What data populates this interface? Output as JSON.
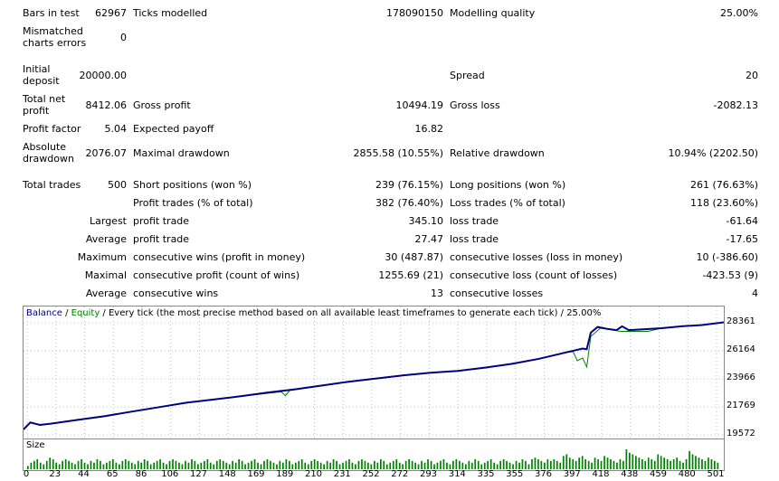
{
  "stats": {
    "bars_in_test": {
      "label": "Bars in test",
      "value": "62967"
    },
    "ticks_modelled": {
      "label": "Ticks modelled",
      "value": "178090150"
    },
    "modelling_quality": {
      "label": "Modelling quality",
      "value": "25.00%"
    },
    "mismatched": {
      "label_l1": "Mismatched",
      "label_l2": "charts errors",
      "value": "0"
    },
    "initial_deposit": {
      "label_l1": "Initial",
      "label_l2": "deposit",
      "value": "20000.00"
    },
    "spread": {
      "label": "Spread",
      "value": "20"
    },
    "total_net_profit": {
      "label_l1": "Total net",
      "label_l2": "profit",
      "value": "8412.06"
    },
    "gross_profit": {
      "label": "Gross profit",
      "value": "10494.19"
    },
    "gross_loss": {
      "label": "Gross loss",
      "value": "-2082.13"
    },
    "profit_factor": {
      "label": "Profit factor",
      "value": "5.04"
    },
    "expected_payoff": {
      "label": "Expected payoff",
      "value": "16.82"
    },
    "absolute_drawdown": {
      "label_l1": "Absolute",
      "label_l2": "drawdown",
      "value": "2076.07"
    },
    "maximal_drawdown": {
      "label": "Maximal drawdown",
      "value": "2855.58 (10.55%)"
    },
    "relative_drawdown": {
      "label": "Relative drawdown",
      "value": "10.94% (2202.50)"
    },
    "total_trades": {
      "label": "Total trades",
      "value": "500"
    },
    "short_positions": {
      "label": "Short positions (won %)",
      "value": "239 (76.15%)"
    },
    "long_positions": {
      "label": "Long positions (won %)",
      "value": "261 (76.63%)"
    },
    "profit_trades": {
      "label": "Profit trades (% of total)",
      "value": "382 (76.40%)"
    },
    "loss_trades": {
      "label": "Loss trades (% of total)",
      "value": "118 (23.60%)"
    },
    "largest": {
      "prefix": "Largest",
      "profit_label": "profit trade",
      "profit_value": "345.10",
      "loss_label": "loss trade",
      "loss_value": "-61.64"
    },
    "average": {
      "prefix": "Average",
      "profit_label": "profit trade",
      "profit_value": "27.47",
      "loss_label": "loss trade",
      "loss_value": "-17.65"
    },
    "maximum": {
      "prefix": "Maximum",
      "profit_label": "consecutive wins (profit in money)",
      "profit_value": "30 (487.87)",
      "loss_label": "consecutive losses (loss in money)",
      "loss_value": "10 (-386.60)"
    },
    "maximal": {
      "prefix": "Maximal",
      "profit_label": "consecutive profit (count of wins)",
      "profit_value": "1255.69 (21)",
      "loss_label": "consecutive loss (count of losses)",
      "loss_value": "-423.53 (9)"
    },
    "average2": {
      "prefix": "Average",
      "profit_label": "consecutive wins",
      "profit_value": "13",
      "loss_label": "consecutive losses",
      "loss_value": "4"
    }
  },
  "chart_legend": {
    "balance": "Balance",
    "sep": " / ",
    "equity": "Equity",
    "rest": " / Every tick (the most precise method based on all available least timeframes to generate each tick) / 25.00%"
  },
  "colors": {
    "balance": "#000080",
    "equity": "#008000",
    "volume": "#008000",
    "grid": "#c0c0c0"
  },
  "volume_label": "Size",
  "chart_data": {
    "type": "line",
    "x_ticks": [
      "0",
      "23",
      "44",
      "65",
      "86",
      "106",
      "127",
      "148",
      "169",
      "189",
      "210",
      "231",
      "252",
      "272",
      "293",
      "314",
      "335",
      "355",
      "376",
      "397",
      "418",
      "438",
      "459",
      "480",
      "501"
    ],
    "y_ticks": [
      "28361",
      "26164",
      "23966",
      "21769",
      "19572"
    ],
    "ylim": [
      19572,
      28800
    ],
    "xlim": [
      0,
      516
    ],
    "series": [
      {
        "name": "Balance",
        "points": [
          [
            0,
            20000
          ],
          [
            5,
            20550
          ],
          [
            12,
            20350
          ],
          [
            20,
            20450
          ],
          [
            40,
            20750
          ],
          [
            60,
            21050
          ],
          [
            80,
            21400
          ],
          [
            100,
            21750
          ],
          [
            120,
            22100
          ],
          [
            140,
            22350
          ],
          [
            160,
            22600
          ],
          [
            180,
            22900
          ],
          [
            200,
            23150
          ],
          [
            220,
            23450
          ],
          [
            240,
            23750
          ],
          [
            260,
            24000
          ],
          [
            280,
            24250
          ],
          [
            300,
            24450
          ],
          [
            320,
            24600
          ],
          [
            340,
            24850
          ],
          [
            360,
            25150
          ],
          [
            380,
            25550
          ],
          [
            400,
            26050
          ],
          [
            412,
            26350
          ],
          [
            415,
            26300
          ],
          [
            418,
            27600
          ],
          [
            423,
            28050
          ],
          [
            430,
            27900
          ],
          [
            437,
            27800
          ],
          [
            441,
            28100
          ],
          [
            446,
            27800
          ],
          [
            455,
            27850
          ],
          [
            470,
            27950
          ],
          [
            485,
            28100
          ],
          [
            500,
            28200
          ],
          [
            516,
            28412
          ]
        ]
      },
      {
        "name": "Equity",
        "points": [
          [
            0,
            20000
          ],
          [
            5,
            20500
          ],
          [
            12,
            20350
          ],
          [
            20,
            20450
          ],
          [
            40,
            20750
          ],
          [
            60,
            21050
          ],
          [
            80,
            21400
          ],
          [
            100,
            21750
          ],
          [
            120,
            22100
          ],
          [
            140,
            22350
          ],
          [
            160,
            22600
          ],
          [
            190,
            22950
          ],
          [
            193,
            22650
          ],
          [
            196,
            23050
          ],
          [
            220,
            23450
          ],
          [
            240,
            23750
          ],
          [
            260,
            24000
          ],
          [
            280,
            24250
          ],
          [
            300,
            24450
          ],
          [
            320,
            24600
          ],
          [
            340,
            24850
          ],
          [
            360,
            25150
          ],
          [
            380,
            25550
          ],
          [
            400,
            26050
          ],
          [
            405,
            26100
          ],
          [
            408,
            25400
          ],
          [
            412,
            25600
          ],
          [
            415,
            24900
          ],
          [
            418,
            27300
          ],
          [
            425,
            27950
          ],
          [
            440,
            27700
          ],
          [
            460,
            27700
          ],
          [
            470,
            27950
          ],
          [
            485,
            28100
          ],
          [
            500,
            28200
          ],
          [
            516,
            28412
          ]
        ]
      }
    ],
    "volume_values": [
      2,
      4,
      5,
      6,
      4,
      3,
      5,
      7,
      6,
      4,
      3,
      5,
      6,
      5,
      4,
      3,
      5,
      6,
      4,
      3,
      5,
      4,
      6,
      5,
      3,
      4,
      5,
      6,
      4,
      3,
      5,
      6,
      5,
      4,
      3,
      5,
      4,
      6,
      5,
      3,
      4,
      5,
      6,
      4,
      3,
      5,
      6,
      5,
      4,
      3,
      5,
      4,
      6,
      5,
      3,
      4,
      5,
      6,
      4,
      3,
      5,
      6,
      5,
      4,
      3,
      5,
      4,
      6,
      5,
      3,
      4,
      5,
      6,
      4,
      3,
      5,
      6,
      5,
      4,
      3,
      5,
      4,
      6,
      5,
      3,
      4,
      5,
      6,
      4,
      3,
      5,
      6,
      5,
      4,
      3,
      5,
      4,
      6,
      5,
      3,
      4,
      5,
      6,
      4,
      3,
      5,
      6,
      5,
      4,
      3,
      5,
      4,
      6,
      5,
      3,
      4,
      5,
      6,
      4,
      3,
      5,
      6,
      5,
      4,
      3,
      5,
      4,
      6,
      5,
      3,
      4,
      5,
      6,
      4,
      3,
      5,
      6,
      5,
      4,
      3,
      5,
      4,
      6,
      5,
      3,
      4,
      5,
      6,
      4,
      3,
      5,
      6,
      5,
      4,
      3,
      5,
      4,
      6,
      5,
      3,
      6,
      7,
      6,
      5,
      4,
      6,
      5,
      6,
      5,
      4,
      8,
      9,
      7,
      6,
      5,
      7,
      8,
      6,
      5,
      4,
      7,
      6,
      5,
      8,
      7,
      6,
      5,
      4,
      6,
      5,
      12,
      10,
      9,
      8,
      7,
      6,
      5,
      7,
      6,
      5,
      9,
      8,
      7,
      6,
      5,
      6,
      7,
      5,
      4,
      6,
      11,
      9,
      8,
      7,
      6,
      5,
      7,
      6,
      5,
      4
    ]
  }
}
